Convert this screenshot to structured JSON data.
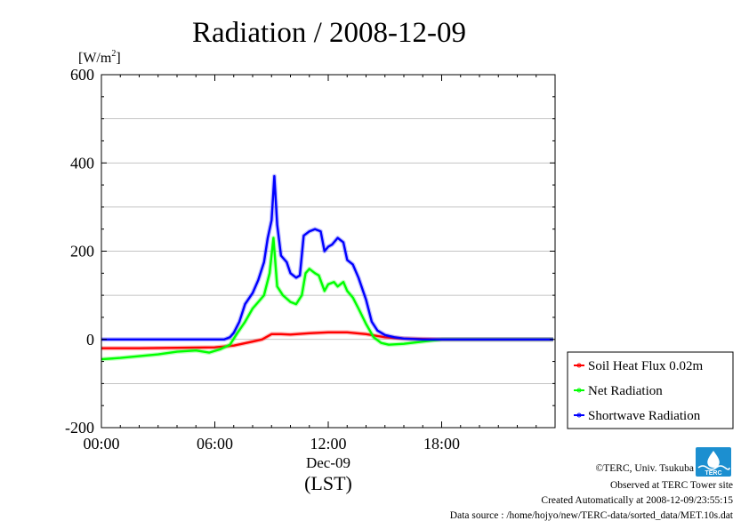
{
  "page": {
    "title": "Radiation / 2008-12-09",
    "ylabel": {
      "unit": "[W/m",
      "sup": "2",
      "close": "]"
    },
    "x_date": "Dec-09",
    "x_tz": "(LST)"
  },
  "footer": {
    "copyright": "©TERC, Univ. Tsukuba",
    "site": "Observed at TERC Tower site",
    "created": "Created Automatically at 2008-12-09/23:55:15",
    "source": "Data source : /home/hojyo/new/TERC-data/sorted_data/MET.10s.dat",
    "logo_text": "TERC"
  },
  "chart_data": {
    "type": "line",
    "title": "Radiation / 2008-12-09",
    "xlabel": "Dec-09 (LST)",
    "ylabel": "[W/m2]",
    "x_unit": "hour (LST)",
    "xlim": [
      0,
      24
    ],
    "ylim": [
      -200,
      600
    ],
    "x_ticks": [
      {
        "value": 0,
        "label": "00:00"
      },
      {
        "value": 6,
        "label": "06:00"
      },
      {
        "value": 12,
        "label": "12:00"
      },
      {
        "value": 18,
        "label": "18:00"
      }
    ],
    "y_ticks": [
      -200,
      0,
      200,
      400,
      600
    ],
    "grid": "horizontal",
    "legend_position": "right, outside plot area",
    "series": [
      {
        "name": "Soil Heat Flux 0.02m",
        "color": "#ff0000",
        "x": [
          0,
          2,
          4,
          6,
          7,
          8,
          8.5,
          9,
          9.5,
          10,
          11,
          12,
          13,
          14,
          15,
          16,
          18,
          20,
          22,
          23.9
        ],
        "y": [
          -20,
          -20,
          -19,
          -18,
          -14,
          -5,
          0,
          12,
          12,
          11,
          14,
          16,
          16,
          12,
          5,
          2,
          0,
          0,
          0,
          0
        ]
      },
      {
        "name": "Net Radiation",
        "color": "#00ff00",
        "x": [
          0,
          1,
          2,
          3,
          4,
          5,
          5.7,
          6.3,
          6.8,
          7.2,
          7.6,
          8,
          8.3,
          8.6,
          8.9,
          9.1,
          9.3,
          9.6,
          10,
          10.3,
          10.6,
          10.8,
          11,
          11.3,
          11.5,
          11.8,
          12,
          12.3,
          12.5,
          12.8,
          13,
          13.3,
          13.6,
          14,
          14.4,
          14.8,
          15.2,
          16,
          17,
          18,
          20,
          22,
          23.9
        ],
        "y": [
          -45,
          -42,
          -38,
          -34,
          -28,
          -25,
          -30,
          -22,
          -12,
          15,
          40,
          70,
          85,
          100,
          150,
          230,
          120,
          100,
          85,
          80,
          100,
          150,
          160,
          150,
          145,
          110,
          125,
          130,
          120,
          130,
          110,
          95,
          70,
          35,
          5,
          -8,
          -12,
          -10,
          -5,
          0,
          0,
          0,
          0
        ]
      },
      {
        "name": "Shortwave Radiation",
        "color": "#0000ff",
        "x": [
          0,
          2,
          4,
          6,
          6.5,
          6.8,
          7,
          7.3,
          7.6,
          8,
          8.3,
          8.6,
          8.8,
          9.0,
          9.15,
          9.3,
          9.5,
          9.8,
          10,
          10.3,
          10.5,
          10.7,
          11,
          11.3,
          11.6,
          11.8,
          12,
          12.2,
          12.5,
          12.8,
          13,
          13.3,
          13.6,
          14,
          14.3,
          14.6,
          15,
          15.5,
          16,
          16.5,
          17,
          18,
          20,
          22,
          23.9
        ],
        "y": [
          0,
          0,
          0,
          0,
          0,
          5,
          15,
          40,
          80,
          105,
          135,
          175,
          230,
          270,
          370,
          260,
          190,
          175,
          150,
          140,
          145,
          235,
          245,
          250,
          245,
          200,
          210,
          215,
          230,
          220,
          180,
          170,
          140,
          90,
          40,
          20,
          10,
          5,
          2,
          1,
          0,
          0,
          0,
          0,
          0
        ]
      }
    ]
  }
}
